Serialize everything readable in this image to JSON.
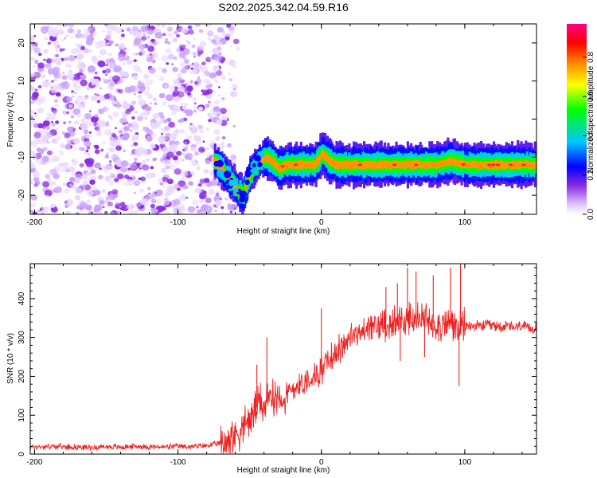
{
  "chart_data": [
    {
      "type": "heatmap",
      "title": "S202.2025.342.04.59.R16",
      "xlabel": "Height of straight line (km)",
      "ylabel": "Frequency (Hz)",
      "xlim": [
        -203,
        150
      ],
      "ylim": [
        -25,
        25
      ],
      "xticks": [
        -200,
        -100,
        0,
        100
      ],
      "yticks": [
        20,
        10,
        0,
        -10,
        -20
      ],
      "colorbar": {
        "label": "Normalized spectral amplitude",
        "range": [
          0,
          0.97
        ],
        "ticks": [
          0.0,
          0.2,
          0.4,
          0.6,
          0.8
        ],
        "colors": [
          "#ffffff",
          "#e0c8ff",
          "#8a2be2",
          "#0000ff",
          "#00c8ff",
          "#00ff00",
          "#ffff00",
          "#ff8000",
          "#ff0000",
          "#ff0080"
        ]
      },
      "regions": [
        {
          "name": "scattered noise",
          "x": [
            -203,
            -68
          ],
          "y": [
            -25,
            25
          ],
          "amplitude": 0.05
        },
        {
          "name": "signal track",
          "x": [
            -75,
            150
          ],
          "y_center": [
            -12,
            -12
          ],
          "amplitude": 0.9
        }
      ],
      "track": {
        "x": [
          -75,
          -68,
          -62,
          -58,
          -55,
          -52,
          -48,
          -44,
          -40,
          -35,
          -30,
          -25,
          -20,
          -15,
          -10,
          -5,
          0,
          5,
          10,
          20,
          30,
          40,
          50,
          60,
          70,
          80,
          90,
          100,
          110,
          120,
          130,
          140,
          150
        ],
        "y": [
          -11,
          -14,
          -17,
          -19,
          -20,
          -16,
          -13,
          -11,
          -10,
          -11,
          -13,
          -12,
          -12,
          -12,
          -12,
          -12,
          -9,
          -11,
          -12,
          -12,
          -12,
          -12,
          -12,
          -12,
          -12,
          -12,
          -11,
          -12,
          -12,
          -12,
          -12,
          -12,
          -12
        ]
      },
      "grid": false
    },
    {
      "type": "line",
      "xlabel": "Height of straight line (km)",
      "ylabel": "SNR (10 * v/v)",
      "xlim": [
        -203,
        150
      ],
      "ylim": [
        0,
        490
      ],
      "xticks": [
        -200,
        -100,
        0,
        100
      ],
      "yticks": [
        0,
        100,
        200,
        300,
        400
      ],
      "series": [
        {
          "color": "#ee2222",
          "x": [
            -203,
            -190,
            -180,
            -170,
            -160,
            -150,
            -140,
            -130,
            -120,
            -110,
            -100,
            -90,
            -80,
            -75,
            -70,
            -65,
            -60,
            -55,
            -50,
            -45,
            -42,
            -40,
            -35,
            -30,
            -25,
            -20,
            -15,
            -10,
            -5,
            0,
            5,
            10,
            15,
            20,
            25,
            30,
            35,
            40,
            45,
            50,
            55,
            60,
            65,
            70,
            75,
            80,
            85,
            90,
            95,
            100,
            105,
            110,
            115,
            120,
            125,
            130,
            135,
            140,
            145,
            150
          ],
          "y": [
            18,
            20,
            19,
            18,
            17,
            19,
            18,
            20,
            19,
            18,
            20,
            19,
            22,
            25,
            28,
            35,
            50,
            70,
            90,
            120,
            140,
            120,
            150,
            155,
            140,
            170,
            180,
            190,
            200,
            215,
            240,
            260,
            280,
            300,
            310,
            315,
            325,
            330,
            340,
            335,
            340,
            345,
            350,
            345,
            340,
            335,
            330,
            340,
            320,
            330,
            330,
            328,
            332,
            330,
            328,
            330,
            325,
            330,
            320,
            330
          ]
        }
      ],
      "spikes": [
        {
          "x": -45,
          "y": 230
        },
        {
          "x": -38,
          "y": 300
        },
        {
          "x": 0,
          "y": 375
        },
        {
          "x": 45,
          "y": 430
        },
        {
          "x": 53,
          "y": 440
        },
        {
          "x": 60,
          "y": 480
        },
        {
          "x": 66,
          "y": 470
        },
        {
          "x": 78,
          "y": 460
        },
        {
          "x": 90,
          "y": 480
        },
        {
          "x": 97,
          "y": 490
        },
        {
          "x": 96,
          "y": 175
        },
        {
          "x": 72,
          "y": 250
        },
        {
          "x": 55,
          "y": 240
        }
      ],
      "grid": false
    }
  ]
}
